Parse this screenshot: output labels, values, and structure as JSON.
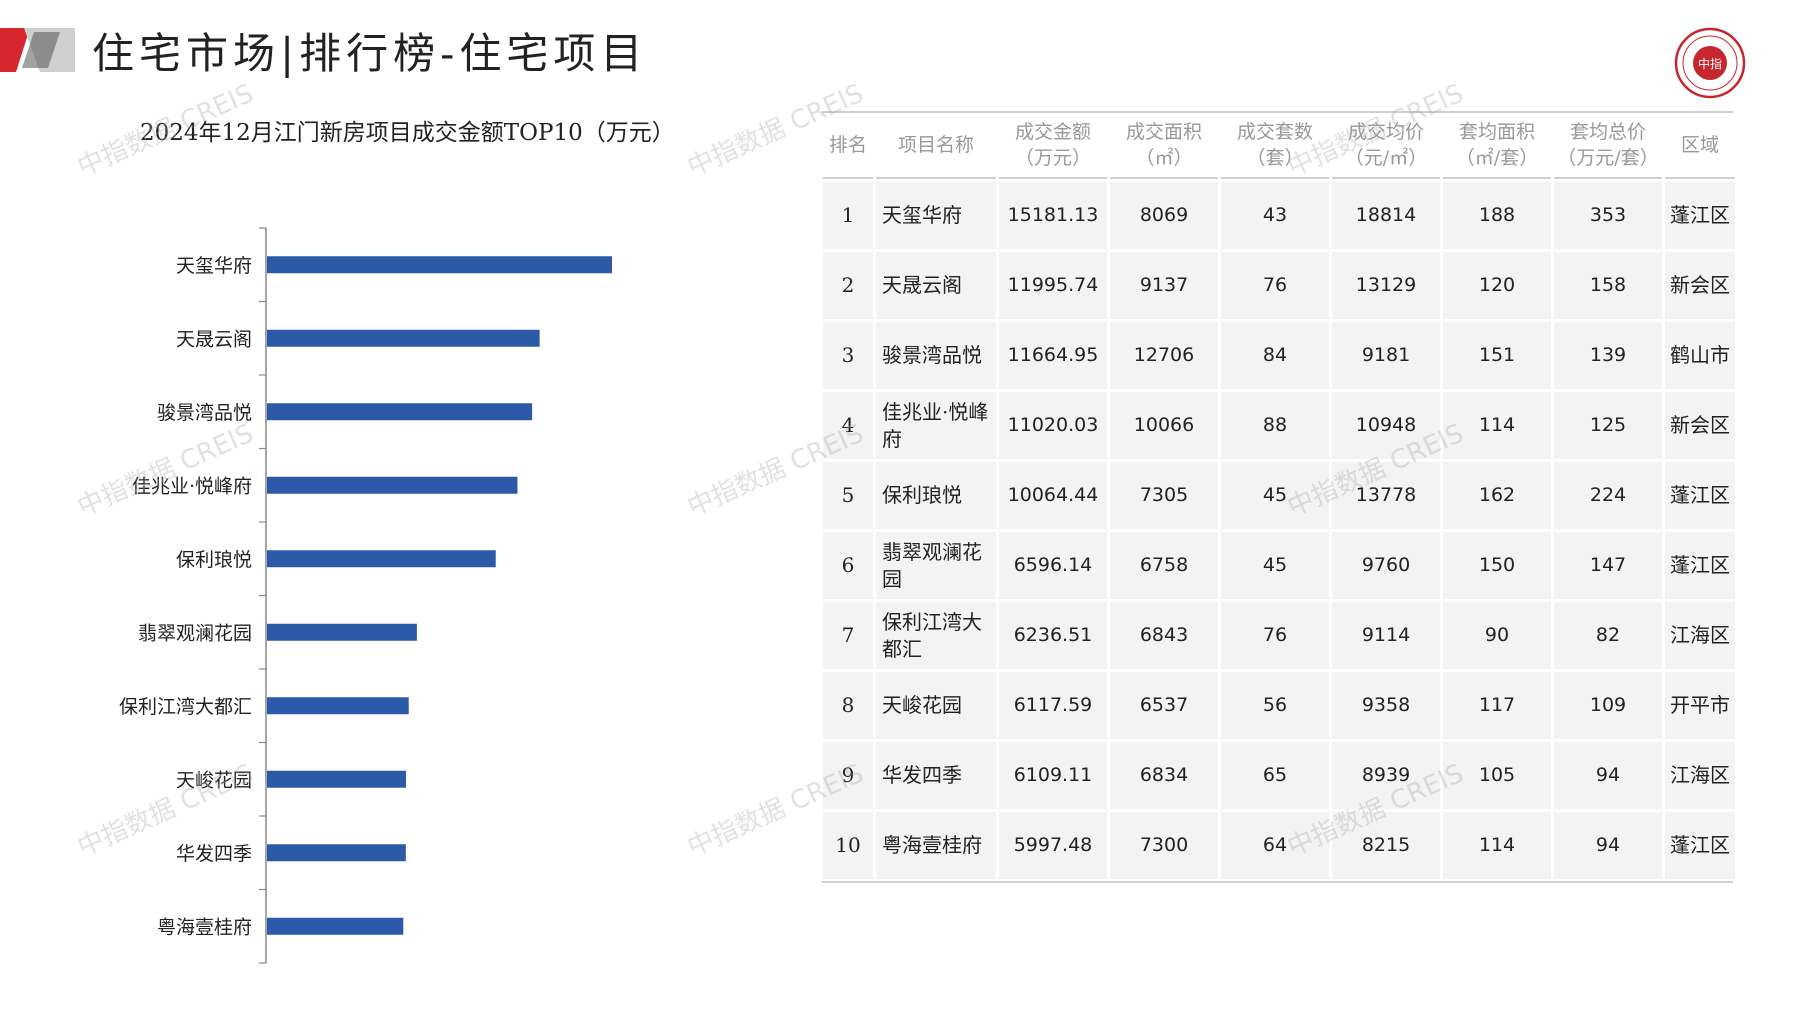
{
  "page": {
    "title": "住宅市场|排行榜-住宅项目",
    "logo_text": "中指",
    "watermark": "中指数据 CREIS"
  },
  "colors": {
    "bar": "#2c5aa8",
    "accent": "#d7262e",
    "cell_bg": "#f3f3f3"
  },
  "chart_data": {
    "type": "bar",
    "orientation": "horizontal",
    "title": "2024年12月江门新房项目成交金额TOP10（万元）",
    "categories": [
      "天玺华府",
      "天晟云阁",
      "骏景湾品悦",
      "佳兆业·悦峰府",
      "保利琅悦",
      "翡翠观澜花园",
      "保利江湾大都汇",
      "天峻花园",
      "华发四季",
      "粤海壹桂府"
    ],
    "values": [
      15181.13,
      11995.74,
      11664.95,
      11020.03,
      10064.44,
      6596.14,
      6236.51,
      6117.59,
      6109.11,
      5997.48
    ],
    "xlim": [
      0,
      22000
    ],
    "grid": false
  },
  "table": {
    "headers": [
      [
        "排名"
      ],
      [
        "项目名称"
      ],
      [
        "成交金额",
        "（万元）"
      ],
      [
        "成交面积",
        "（㎡）"
      ],
      [
        "成交套数",
        "（套）"
      ],
      [
        "成交均价",
        "（元/㎡）"
      ],
      [
        "套均面积",
        "（㎡/套）"
      ],
      [
        "套均总价",
        "（万元/套）"
      ],
      [
        "区域"
      ]
    ],
    "rows": [
      [
        "1",
        "天玺华府",
        "15181.13",
        "8069",
        "43",
        "18814",
        "188",
        "353",
        "蓬江区"
      ],
      [
        "2",
        "天晟云阁",
        "11995.74",
        "9137",
        "76",
        "13129",
        "120",
        "158",
        "新会区"
      ],
      [
        "3",
        "骏景湾品悦",
        "11664.95",
        "12706",
        "84",
        "9181",
        "151",
        "139",
        "鹤山市"
      ],
      [
        "4",
        "佳兆业·悦峰府",
        "11020.03",
        "10066",
        "88",
        "10948",
        "114",
        "125",
        "新会区"
      ],
      [
        "5",
        "保利琅悦",
        "10064.44",
        "7305",
        "45",
        "13778",
        "162",
        "224",
        "蓬江区"
      ],
      [
        "6",
        "翡翠观澜花园",
        "6596.14",
        "6758",
        "45",
        "9760",
        "150",
        "147",
        "蓬江区"
      ],
      [
        "7",
        "保利江湾大都汇",
        "6236.51",
        "6843",
        "76",
        "9114",
        "90",
        "82",
        "江海区"
      ],
      [
        "8",
        "天峻花园",
        "6117.59",
        "6537",
        "56",
        "9358",
        "117",
        "109",
        "开平市"
      ],
      [
        "9",
        "华发四季",
        "6109.11",
        "6834",
        "65",
        "8939",
        "105",
        "94",
        "江海区"
      ],
      [
        "10",
        "粤海壹桂府",
        "5997.48",
        "7300",
        "64",
        "8215",
        "114",
        "94",
        "蓬江区"
      ]
    ]
  }
}
